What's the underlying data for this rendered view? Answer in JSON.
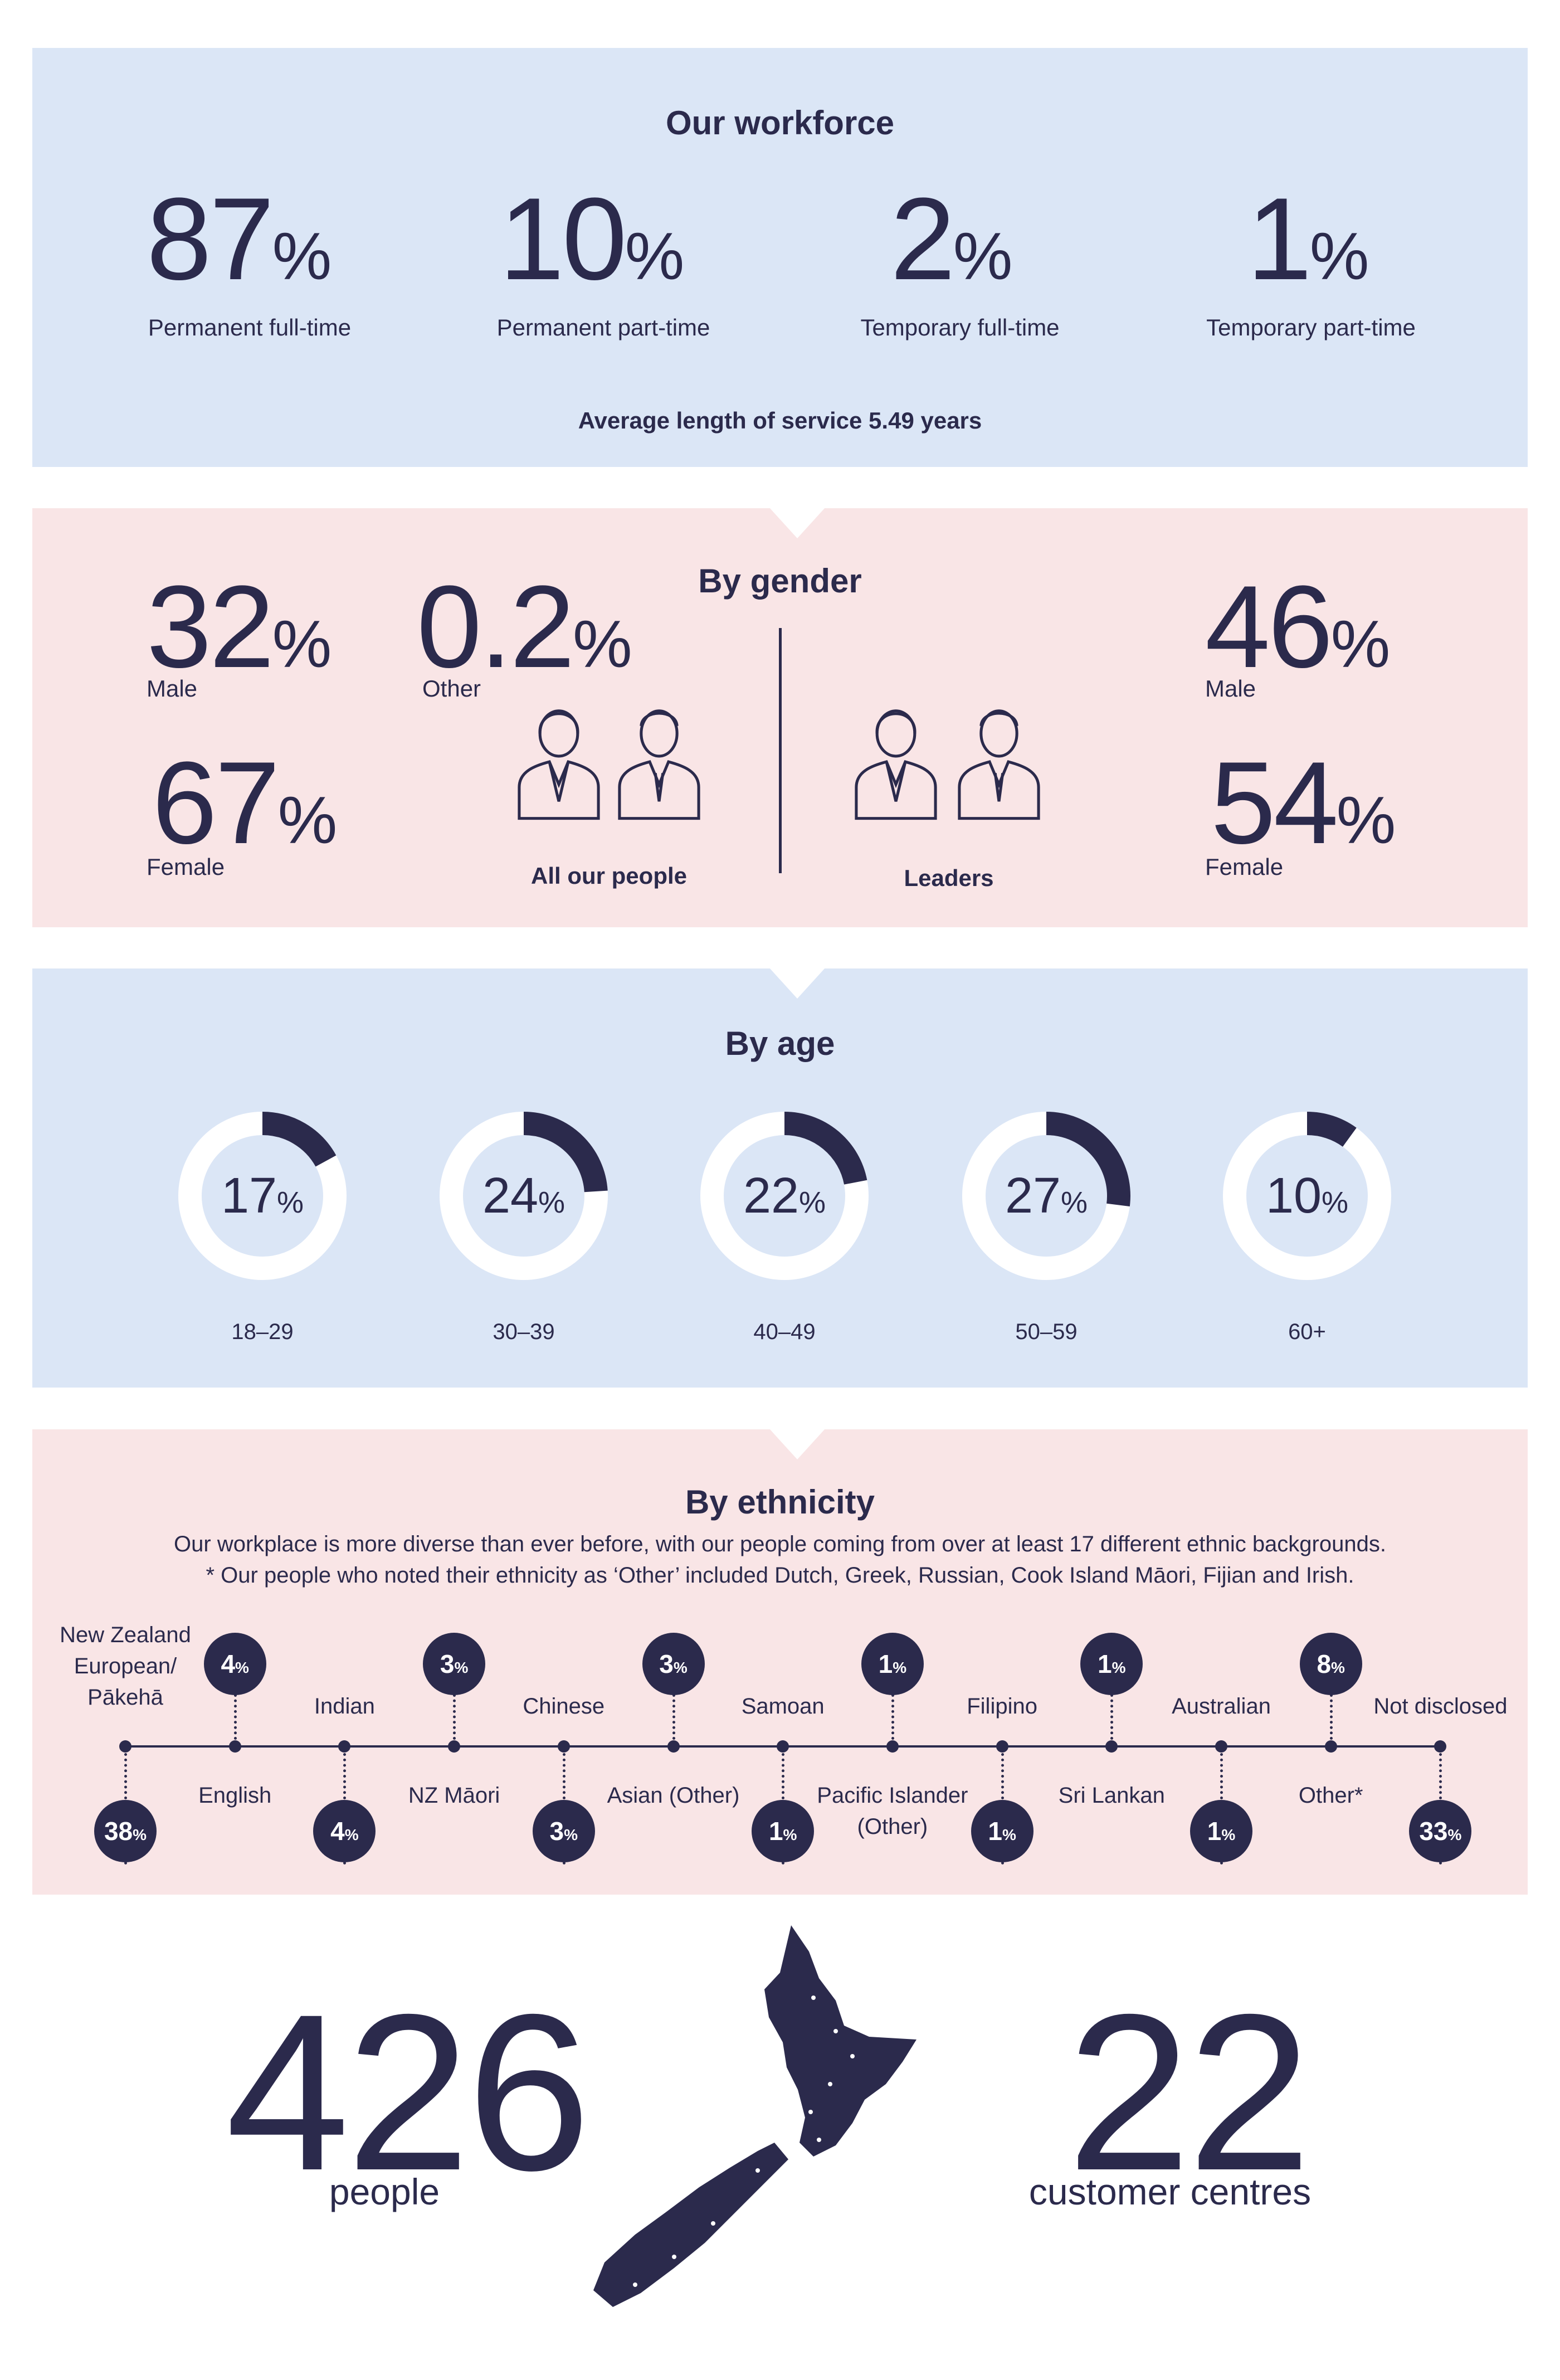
{
  "workforce": {
    "title": "Our workforce",
    "stats": [
      {
        "value": "87",
        "unit": "%",
        "label": "Permanent full-time"
      },
      {
        "value": "10",
        "unit": "%",
        "label": "Permanent part-time"
      },
      {
        "value": "2",
        "unit": "%",
        "label": "Temporary full-time"
      },
      {
        "value": "1",
        "unit": "%",
        "label": "Temporary part-time"
      }
    ],
    "service": "Average length of service 5.49 years"
  },
  "gender": {
    "title": "By gender",
    "all": {
      "male": {
        "value": "32",
        "unit": "%",
        "label": "Male"
      },
      "other": {
        "value": "0.2",
        "unit": "%",
        "label": "Other"
      },
      "female": {
        "value": "67",
        "unit": "%",
        "label": "Female"
      },
      "caption": "All our people"
    },
    "leaders": {
      "male": {
        "value": "46",
        "unit": "%",
        "label": "Male"
      },
      "female": {
        "value": "54",
        "unit": "%",
        "label": "Female"
      },
      "caption": "Leaders"
    }
  },
  "age": {
    "title": "By age",
    "groups": [
      {
        "value": "17",
        "unit": "%",
        "label": "18–29",
        "fraction": 0.17
      },
      {
        "value": "24",
        "unit": "%",
        "label": "30–39",
        "fraction": 0.24
      },
      {
        "value": "22",
        "unit": "%",
        "label": "40–49",
        "fraction": 0.22
      },
      {
        "value": "27",
        "unit": "%",
        "label": "50–59",
        "fraction": 0.27
      },
      {
        "value": "10",
        "unit": "%",
        "label": "60+",
        "fraction": 0.1
      }
    ]
  },
  "ethnicity": {
    "title": "By ethnicity",
    "line1": "Our workplace is more diverse than ever before, with our people coming from over at least 17 different ethnic backgrounds.",
    "line2": "* Our people who noted their ethnicity as ‘Other’ included Dutch, Greek, Russian, Cook Island Māori, Fijian and Irish.",
    "items": [
      {
        "label": "New Zealand European/ Pākehā",
        "value": "38",
        "unit": "%"
      },
      {
        "label": "English",
        "value": "4",
        "unit": "%"
      },
      {
        "label": "Indian",
        "value": "4",
        "unit": "%"
      },
      {
        "label": "NZ Māori",
        "value": "3",
        "unit": "%"
      },
      {
        "label": "Chinese",
        "value": "3",
        "unit": "%"
      },
      {
        "label": "Asian (Other)",
        "value": "3",
        "unit": "%"
      },
      {
        "label": "Samoan",
        "value": "1",
        "unit": "%"
      },
      {
        "label": "Pacific Islander (Other)",
        "value": "1",
        "unit": "%"
      },
      {
        "label": "Filipino",
        "value": "1",
        "unit": "%"
      },
      {
        "label": "Sri Lankan",
        "value": "1",
        "unit": "%"
      },
      {
        "label": "Australian",
        "value": "1",
        "unit": "%"
      },
      {
        "label": "Other*",
        "value": "8",
        "unit": "%"
      },
      {
        "label": "Not disclosed",
        "value": "33",
        "unit": "%"
      }
    ]
  },
  "totals": {
    "people": {
      "value": "426",
      "label": "people"
    },
    "centres": {
      "value": "22",
      "label": "customer centres"
    }
  },
  "colors": {
    "navy": "#2b2a4c",
    "blue_panel": "#dbe6f6",
    "pink_panel": "#f9e5e6",
    "ring": "#ffffff"
  }
}
